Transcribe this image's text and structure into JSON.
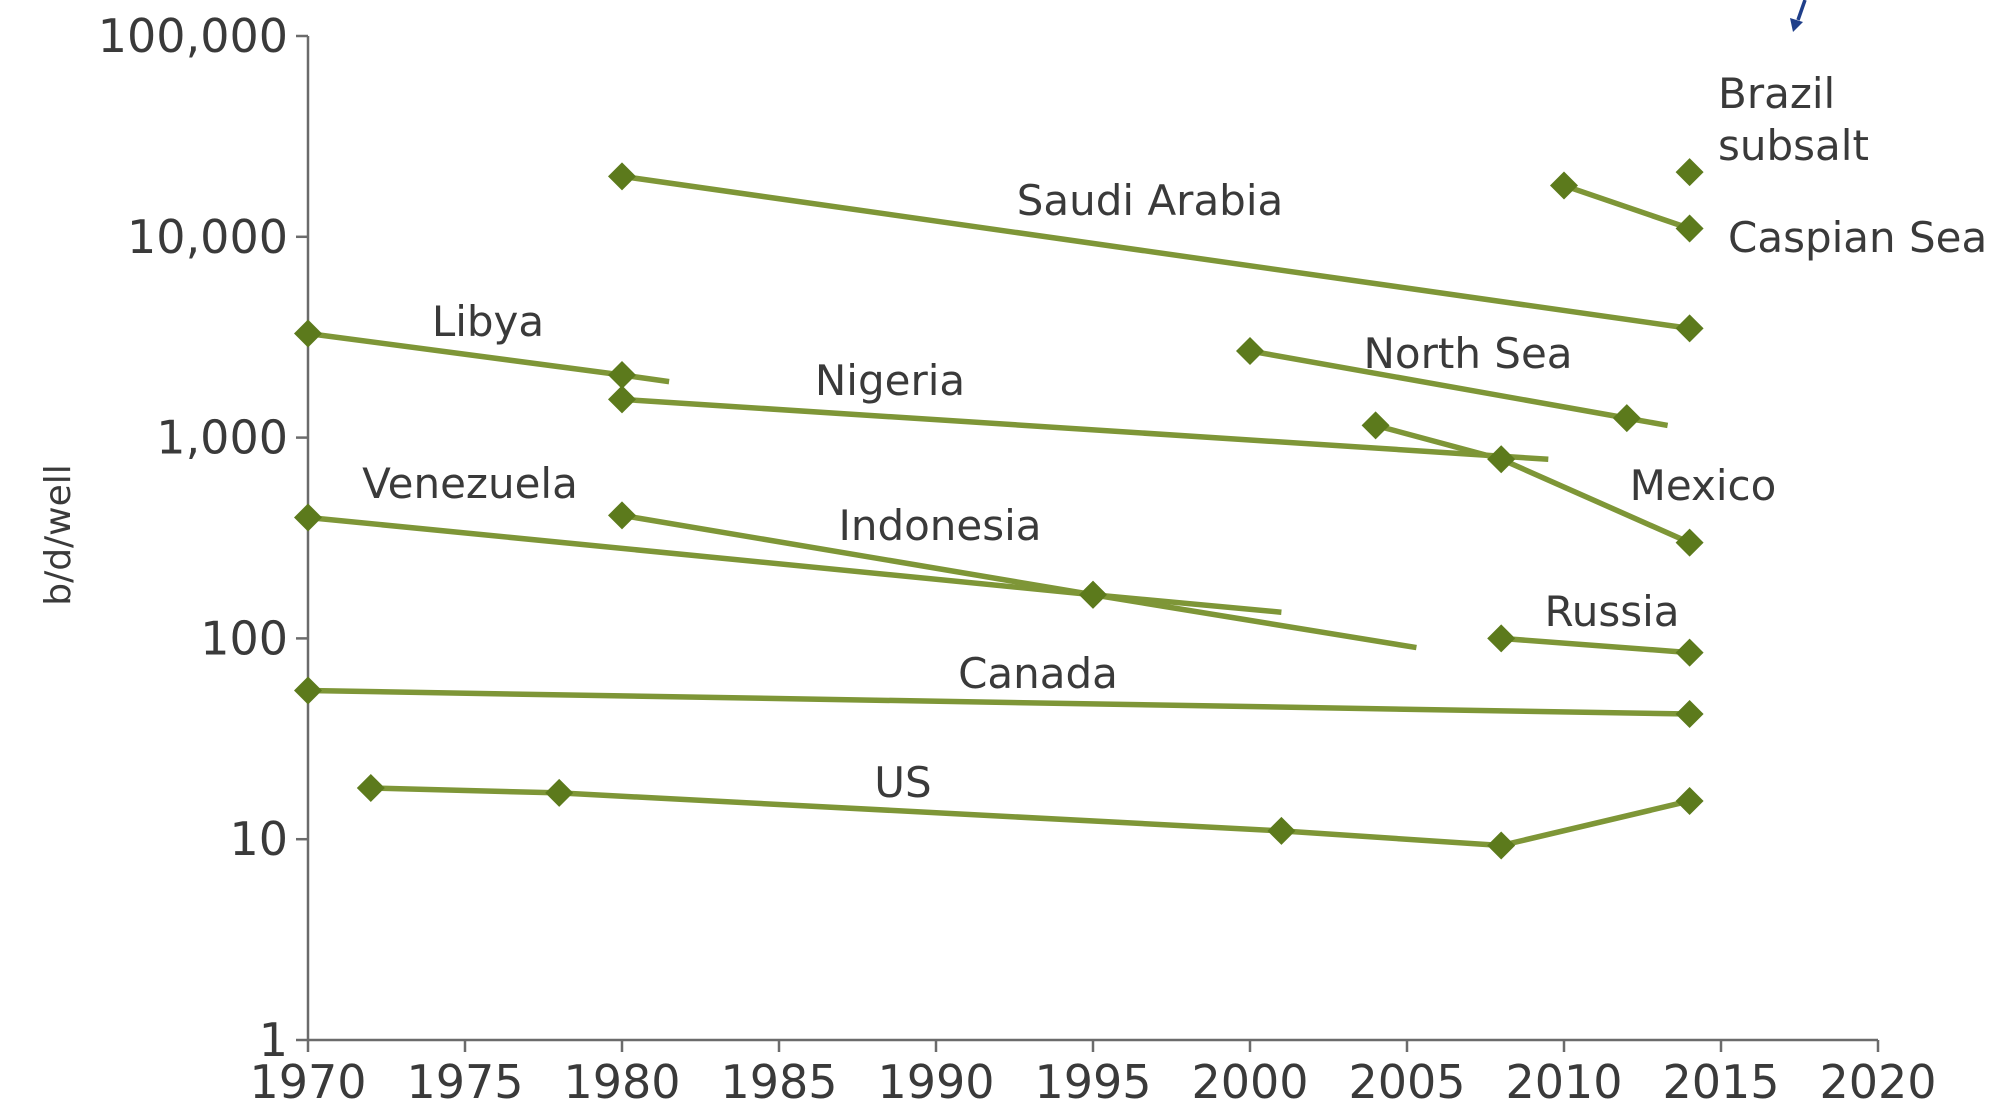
{
  "chart_data": {
    "type": "line",
    "title": "",
    "xlabel": "",
    "ylabel": "b/d/well",
    "y_scale": "log",
    "xlim": [
      1970,
      2020
    ],
    "ylim": [
      1,
      100000
    ],
    "x_ticks": [
      "1970",
      "1975",
      "1980",
      "1985",
      "1990",
      "1995",
      "2000",
      "2005",
      "2010",
      "2015",
      "2020"
    ],
    "y_ticks": [
      {
        "value": 1,
        "label": "1"
      },
      {
        "value": 10,
        "label": "10"
      },
      {
        "value": 100,
        "label": "100"
      },
      {
        "value": 1000,
        "label": "1,000"
      },
      {
        "value": 10000,
        "label": "10,000"
      },
      {
        "value": 100000,
        "label": "100,000"
      }
    ],
    "grid": false,
    "legend": "none",
    "colors": {
      "series": "#7e9637",
      "marker": "#5c7a1c",
      "annotation_arrow": "#1f3f8a"
    },
    "series": [
      {
        "name": "Saudi Arabia",
        "points": [
          [
            1980,
            20000
          ],
          [
            2014,
            3500
          ]
        ],
        "line_end": null
      },
      {
        "name": "Brazil subsalt",
        "points": [
          [
            2014,
            21000
          ]
        ],
        "line_end": null
      },
      {
        "name": "Caspian Sea",
        "points": [
          [
            2010,
            18000
          ],
          [
            2014,
            11000
          ]
        ],
        "line_end": null
      },
      {
        "name": "Libya",
        "points": [
          [
            1970,
            3300
          ],
          [
            1980,
            2050
          ]
        ],
        "line_end": [
          1981.5,
          1900
        ]
      },
      {
        "name": "Nigeria",
        "points": [
          [
            1980,
            1550
          ]
        ],
        "line_end": [
          2009.5,
          780
        ]
      },
      {
        "name": "North Sea",
        "points": [
          [
            2000,
            2700
          ],
          [
            2012,
            1250
          ]
        ],
        "line_end": [
          2013.3,
          1150
        ]
      },
      {
        "name": "Mexico",
        "points": [
          [
            2004,
            1150
          ],
          [
            2008,
            780
          ],
          [
            2014,
            300
          ]
        ],
        "line_end": null
      },
      {
        "name": "Venezuela",
        "points": [
          [
            1970,
            400
          ],
          [
            1995,
            165
          ]
        ],
        "line_end": [
          2001,
          135
        ]
      },
      {
        "name": "Indonesia",
        "points": [
          [
            1980,
            410
          ],
          [
            1995,
            165
          ]
        ],
        "line_end": [
          2005.3,
          90
        ]
      },
      {
        "name": "Russia",
        "points": [
          [
            2008,
            100
          ],
          [
            2014,
            85
          ]
        ],
        "line_end": null
      },
      {
        "name": "Canada",
        "points": [
          [
            1970,
            55
          ],
          [
            2014,
            42
          ]
        ],
        "line_end": null
      },
      {
        "name": "US",
        "points": [
          [
            1972,
            18
          ],
          [
            1978,
            17
          ],
          [
            2001,
            11
          ],
          [
            2008,
            9.3
          ],
          [
            2014,
            15.5
          ]
        ],
        "line_end": null
      }
    ]
  }
}
